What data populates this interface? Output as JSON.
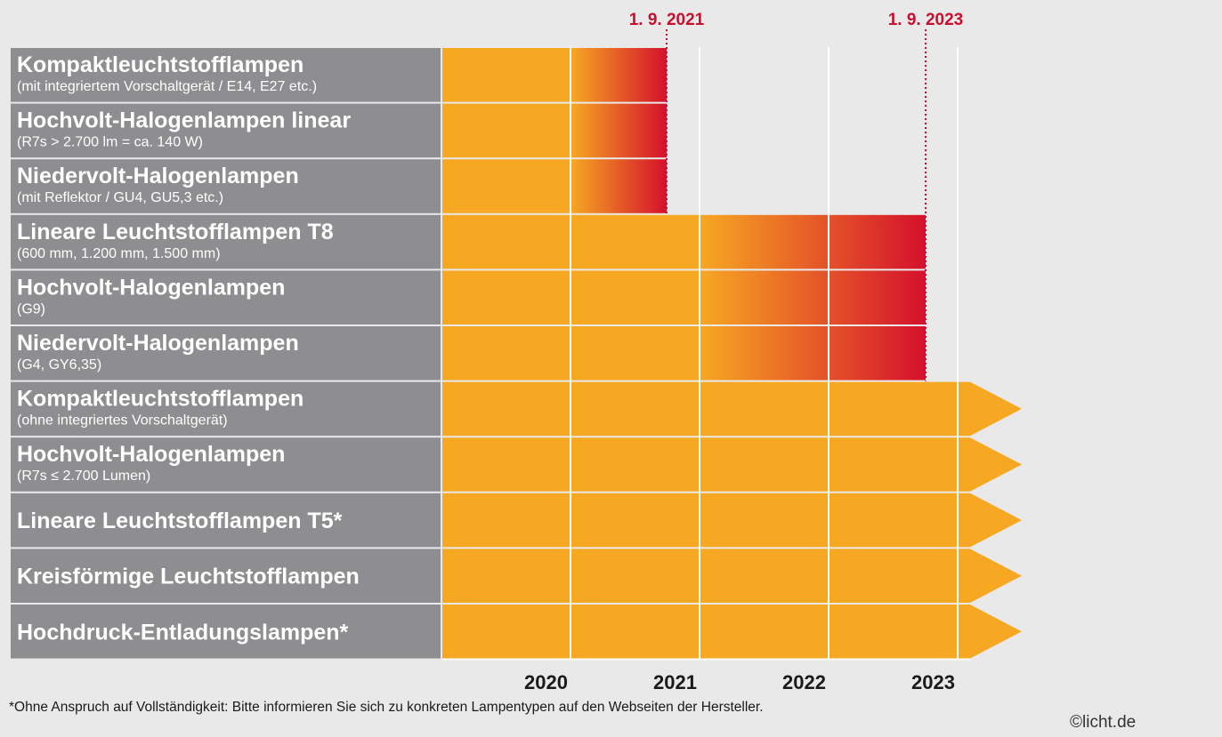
{
  "deadlines": [
    {
      "date": "1. 9. 2021",
      "lamps": [
        {
          "title": "Kompaktleuchtstofflampen",
          "subtitle": "(mit integriertem Vorschaltgerät / E14, E27 etc.)"
        },
        {
          "title": "Hochvolt-Halogenlampen linear",
          "subtitle": "(R7s > 2.700 lm = ca. 140 W)"
        },
        {
          "title": "Niedervolt-Halogenlampen",
          "subtitle": "(mit Reflektor / GU4, GU5,3 etc.)"
        }
      ]
    },
    {
      "date": "1. 9. 2023",
      "lamps": [
        {
          "title": "Lineare Leuchtstofflampen T8",
          "subtitle": "(600 mm, 1.200 mm, 1.500 mm)"
        },
        {
          "title": "Hochvolt-Halogenlampen",
          "subtitle": "(G9)"
        },
        {
          "title": "Niedervolt-Halogenlampen",
          "subtitle": "(G4, GY6,35)"
        }
      ]
    }
  ],
  "continuing": [
    {
      "title": "Kompaktleuchtstofflampen",
      "subtitle": "(ohne integriertes Vorschaltgerät)"
    },
    {
      "title": "Hochvolt-Halogenlampen",
      "subtitle": "(R7s ≤ 2.700 Lumen)"
    },
    {
      "title": "Lineare Leuchtstofflampen T5*"
    },
    {
      "title": "Kreisförmige Leuchtstofflampen"
    },
    {
      "title": "Hochdruck-Entladungslampen*"
    }
  ],
  "years": [
    2020,
    2021,
    2022,
    2023
  ],
  "footnote": "*Ohne Anspruch auf Vollständigkeit: Bitte informieren Sie sich zu konkreten Lampentypen auf den Webseiten der Hersteller.",
  "copyright": "©licht.de"
}
